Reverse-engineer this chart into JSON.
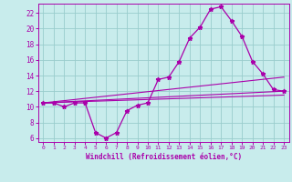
{
  "xlabel": "Windchill (Refroidissement éolien,°C)",
  "bg_color": "#c8ecec",
  "line_color": "#aa00aa",
  "grid_color": "#99cccc",
  "xlim": [
    -0.5,
    23.5
  ],
  "ylim": [
    5.5,
    23.2
  ],
  "xticks": [
    0,
    1,
    2,
    3,
    4,
    5,
    6,
    7,
    8,
    9,
    10,
    11,
    12,
    13,
    14,
    15,
    16,
    17,
    18,
    19,
    20,
    21,
    22,
    23
  ],
  "yticks": [
    6,
    8,
    10,
    12,
    14,
    16,
    18,
    20,
    22
  ],
  "line1_x": [
    0,
    1,
    2,
    3,
    4,
    5,
    6,
    7,
    8,
    9,
    10,
    11,
    12,
    13,
    14,
    15,
    16,
    17,
    18,
    19,
    20,
    21,
    22,
    23
  ],
  "line1_y": [
    10.5,
    10.5,
    10.0,
    10.5,
    10.5,
    6.7,
    6.0,
    6.7,
    9.5,
    10.2,
    10.5,
    13.5,
    13.8,
    15.8,
    18.8,
    20.2,
    22.5,
    22.8,
    21.0,
    19.0,
    15.8,
    14.2,
    12.2,
    12.0
  ],
  "line2_x": [
    0,
    23
  ],
  "line2_y": [
    10.5,
    12.0
  ],
  "line3_x": [
    0,
    23
  ],
  "line3_y": [
    10.5,
    13.8
  ],
  "line4_x": [
    0,
    23
  ],
  "line4_y": [
    10.5,
    11.5
  ]
}
